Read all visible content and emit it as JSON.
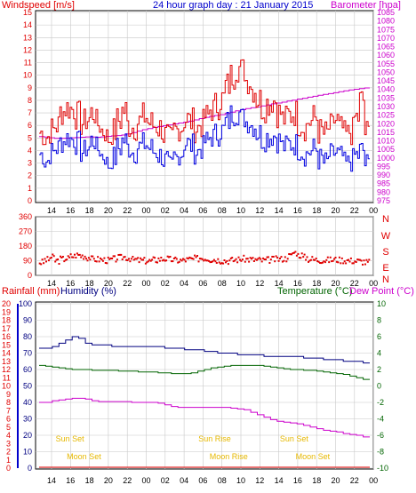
{
  "header": {
    "title": "24 hour graph day : 21 January 2015",
    "left_label": "Windspeed [m/s]",
    "right_label": "Barometer [hpa]"
  },
  "bottom_header": {
    "rainfall": "Rainfall (mm)",
    "humidity": "Humidity (%)",
    "temperature": "Temperature (°C)",
    "dewpoint": "Dew Point (°C)"
  },
  "colors": {
    "wind_gust": "#e00000",
    "wind_avg": "#0000e0",
    "barometer": "#cc00cc",
    "direction": "#e00000",
    "humidity": "#000080",
    "temperature": "#006400",
    "dewpoint": "#cc00cc",
    "rain_axis": "#e00000",
    "events": "#e6b800"
  },
  "chart_data": [
    {
      "type": "line",
      "title": "24 hour graph day : 21 January 2015",
      "ylabel": "Windspeed [m/s]",
      "y2label": "Barometer [hpa]",
      "ylim": [
        0,
        15
      ],
      "y2lim": [
        975,
        1085
      ],
      "y_ticks": [
        "0",
        "1",
        "2",
        "3",
        "4",
        "5",
        "6",
        "7",
        "8",
        "9",
        "10",
        "11",
        "12",
        "13",
        "14",
        "15"
      ],
      "y2_ticks": [
        "975",
        "980",
        "985",
        "990",
        "995",
        "1000",
        "1005",
        "1010",
        "1015",
        "1020",
        "1025",
        "1030",
        "1035",
        "1040",
        "1045",
        "1050",
        "1055",
        "1060",
        "1065",
        "1070",
        "1075",
        "1080",
        "1085"
      ],
      "x_ticks": [
        "14",
        "16",
        "18",
        "20",
        "22",
        "00",
        "02",
        "04",
        "06",
        "08",
        "10",
        "12",
        "14",
        "16",
        "18",
        "20",
        "22",
        "00"
      ],
      "series": [
        {
          "role": "gust",
          "values": [
            5.4,
            5.1,
            5.6,
            6.0,
            7.1,
            7.4,
            7.3,
            6.8,
            6.2,
            6.5,
            7.0,
            6.1,
            5.6,
            5.0,
            5.5,
            6.4,
            7.2,
            6.0,
            5.9,
            6.3,
            6.7,
            6.2,
            6.0,
            5.8,
            5.2,
            4.8,
            5.6,
            5.9,
            6.5,
            6.3,
            5.8,
            6.1,
            6.7,
            7.3,
            7.6,
            8.1,
            9.2,
            10.0,
            10.6,
            10.4,
            9.6,
            8.9,
            8.1,
            7.4,
            7.8,
            8.0,
            7.0,
            6.5,
            6.8,
            7.0,
            6.2,
            5.9,
            6.3,
            6.6,
            5.5,
            5.3,
            5.8,
            6.4,
            5.7,
            5.2,
            5.5,
            6.6,
            8.0,
            5.4
          ]
        },
        {
          "role": "average",
          "values": [
            3.7,
            3.2,
            3.8,
            4.2,
            4.7,
            5.0,
            4.9,
            4.6,
            3.9,
            4.2,
            4.8,
            4.1,
            3.6,
            2.9,
            3.4,
            4.2,
            4.8,
            4.2,
            3.9,
            4.3,
            4.5,
            4.2,
            3.9,
            3.6,
            3.2,
            2.6,
            3.4,
            3.8,
            4.6,
            4.4,
            3.9,
            4.2,
            4.7,
            5.1,
            5.3,
            5.6,
            6.3,
            6.9,
            7.0,
            6.6,
            6.3,
            6.0,
            5.4,
            4.9,
            5.1,
            5.2,
            4.8,
            4.3,
            4.5,
            4.5,
            4.1,
            3.7,
            3.9,
            4.1,
            3.3,
            3.0,
            3.6,
            3.8,
            3.5,
            2.9,
            3.2,
            3.6,
            4.0,
            2.9
          ]
        },
        {
          "role": "barometer",
          "values": [
            1012.5,
            1012.2,
            1011.8,
            1011.5,
            1011.4,
            1011.6,
            1011.8,
            1011.9,
            1012.1,
            1012.3,
            1012.2,
            1012.1,
            1012.3,
            1012.6,
            1012.9,
            1013.1,
            1013.4,
            1014.0,
            1014.8,
            1015.7,
            1016.5,
            1017.2,
            1017.8,
            1018.3,
            1018.8,
            1019.3,
            1019.9,
            1020.4,
            1020.9,
            1021.5,
            1022.2,
            1023.0,
            1023.7,
            1024.3,
            1024.8,
            1025.3,
            1026.0,
            1026.8,
            1027.5,
            1028.2,
            1028.8,
            1029.3,
            1029.8,
            1030.4,
            1031.0,
            1031.6,
            1032.1,
            1032.6,
            1033.2,
            1033.8,
            1034.4,
            1034.9,
            1035.5,
            1036.0,
            1036.6,
            1037.1,
            1037.6,
            1038.1,
            1038.7,
            1039.2,
            1039.7,
            1040.1,
            1040.5,
            1040.9
          ]
        }
      ]
    },
    {
      "type": "scatter",
      "ylabel": "Wind direction",
      "ylim": [
        0,
        360
      ],
      "y_ticks": [
        "0",
        "90",
        "180",
        "270",
        "360"
      ],
      "compass": [
        "N",
        "W",
        "S",
        "E",
        "N"
      ],
      "x_ticks": [
        "14",
        "16",
        "18",
        "20",
        "22",
        "00",
        "02",
        "04",
        "06",
        "08",
        "10",
        "12",
        "14",
        "16",
        "18",
        "20",
        "22",
        "00"
      ],
      "values": [
        80,
        95,
        110,
        90,
        100,
        105,
        118,
        125,
        120,
        110,
        100,
        98,
        95,
        92,
        100,
        108,
        112,
        105,
        96,
        92,
        90,
        88,
        95,
        100,
        102,
        97,
        93,
        91,
        96,
        99,
        103,
        107,
        104,
        98,
        95,
        92,
        90,
        93,
        97,
        101,
        99,
        96,
        94,
        92,
        95,
        98,
        100,
        103,
        120,
        140,
        125,
        110,
        100,
        96,
        94,
        93,
        95,
        97,
        94,
        92,
        90,
        88,
        85,
        80
      ]
    },
    {
      "type": "line",
      "ylabel": "Humidity (%)",
      "y2label": "Temperature (°C)",
      "ylim": [
        0,
        100
      ],
      "y2lim": [
        -10,
        10
      ],
      "y_ticks": [
        "0",
        "10",
        "20",
        "30",
        "40",
        "50",
        "60",
        "70",
        "80",
        "90",
        "100"
      ],
      "y2_ticks": [
        "-10",
        "-8",
        "-6",
        "-4",
        "-2",
        "0",
        "2",
        "4",
        "6",
        "8",
        "10"
      ],
      "x_ticks": [
        "14",
        "16",
        "18",
        "20",
        "22",
        "00",
        "02",
        "04",
        "06",
        "08",
        "10",
        "12",
        "14",
        "16",
        "18",
        "20",
        "22",
        "00"
      ],
      "series": [
        {
          "role": "humidity",
          "values": [
            73,
            73,
            74,
            76,
            78,
            80,
            79,
            76,
            75,
            75,
            75,
            74,
            74,
            74,
            74,
            74,
            74,
            74,
            74,
            73,
            73,
            73,
            72,
            72,
            72,
            71,
            71,
            70,
            70,
            70,
            69,
            69,
            69,
            69,
            68,
            68,
            68,
            68,
            68,
            68,
            67,
            67,
            67,
            66,
            66,
            66,
            65,
            65,
            65,
            64
          ]
        },
        {
          "role": "temperature",
          "values": [
            2.5,
            2.4,
            2.3,
            2.2,
            2.1,
            2.0,
            2.0,
            2.0,
            1.9,
            1.9,
            1.9,
            1.9,
            1.8,
            1.8,
            1.8,
            1.7,
            1.7,
            1.7,
            1.6,
            1.6,
            1.5,
            1.5,
            1.5,
            1.6,
            1.8,
            2.0,
            2.2,
            2.3,
            2.4,
            2.5,
            2.5,
            2.5,
            2.5,
            2.5,
            2.4,
            2.3,
            2.2,
            2.1,
            2.0,
            2.0,
            1.9,
            1.9,
            1.8,
            1.7,
            1.6,
            1.5,
            1.4,
            1.2,
            1.0,
            0.8
          ]
        },
        {
          "role": "dewpoint",
          "values": [
            -2.0,
            -2.0,
            -1.8,
            -1.7,
            -1.6,
            -1.5,
            -1.5,
            -1.6,
            -1.8,
            -1.9,
            -1.9,
            -1.9,
            -1.9,
            -1.9,
            -2.0,
            -2.0,
            -2.0,
            -2.0,
            -2.1,
            -2.3,
            -2.5,
            -2.6,
            -2.6,
            -2.6,
            -2.6,
            -2.6,
            -2.6,
            -2.6,
            -2.6,
            -2.7,
            -2.8,
            -2.9,
            -3.2,
            -3.5,
            -3.8,
            -4.1,
            -4.3,
            -4.4,
            -4.5,
            -4.6,
            -4.8,
            -5.0,
            -5.2,
            -5.4,
            -5.5,
            -5.6,
            -5.8,
            -5.9,
            -6.0,
            -6.2
          ]
        }
      ],
      "events": [
        {
          "label": "Sun Set",
          "x_hour": 16.5,
          "row": "upper"
        },
        {
          "label": "Moon Set",
          "x_hour": 18.0,
          "row": "lower"
        },
        {
          "label": "Sun Rise",
          "x_hour": 8.0,
          "day": 2,
          "row": "upper"
        },
        {
          "label": "Moon Rise",
          "x_hour": 9.5,
          "day": 2,
          "row": "lower"
        },
        {
          "label": "Sun Set",
          "x_hour": 16.5,
          "day": 2,
          "row": "upper"
        },
        {
          "label": "Moon Set",
          "x_hour": 18.5,
          "day": 2,
          "row": "lower"
        }
      ],
      "rainfall_ticks": [
        "0",
        "1",
        "2",
        "3",
        "4",
        "5",
        "6",
        "7",
        "8",
        "9",
        "10",
        "11",
        "12",
        "13",
        "14",
        "15",
        "16",
        "17",
        "18",
        "19",
        "20"
      ]
    }
  ]
}
